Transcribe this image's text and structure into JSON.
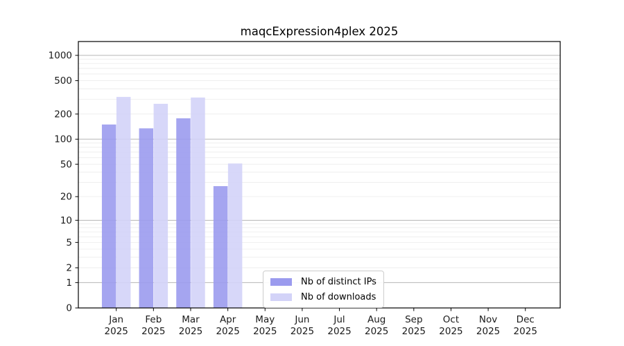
{
  "figure": {
    "title": "maqcExpression4plex 2025"
  },
  "chart_data": {
    "type": "bar",
    "title": "maqcExpression4plex 2025",
    "xlabel": "",
    "ylabel": "",
    "y_scale": "log1p",
    "ylim": [
      0,
      1470
    ],
    "grid": "on",
    "legend_position": "bottom-center",
    "categories": [
      "Jan",
      "Feb",
      "Mar",
      "Apr",
      "May",
      "Jun",
      "Jul",
      "Aug",
      "Sep",
      "Oct",
      "Nov",
      "Dec"
    ],
    "x_year_label": "2025",
    "y_ticks": [
      0,
      1,
      2,
      5,
      10,
      20,
      50,
      100,
      200,
      500,
      1000
    ],
    "series": [
      {
        "name": "Nb of distinct IPs",
        "color": "#9b9bee",
        "values": [
          150,
          135,
          178,
          27,
          null,
          null,
          null,
          null,
          null,
          null,
          null,
          null
        ]
      },
      {
        "name": "Nb of downloads",
        "color": "#d3d3f8",
        "values": [
          320,
          265,
          315,
          51,
          null,
          null,
          null,
          null,
          null,
          null,
          null,
          null
        ]
      }
    ],
    "colors": {
      "major_grid": "#b4b4b4",
      "minor_grid": "#ebebeb",
      "spine": "#000000",
      "tick_text": "#1a1a1a"
    }
  }
}
